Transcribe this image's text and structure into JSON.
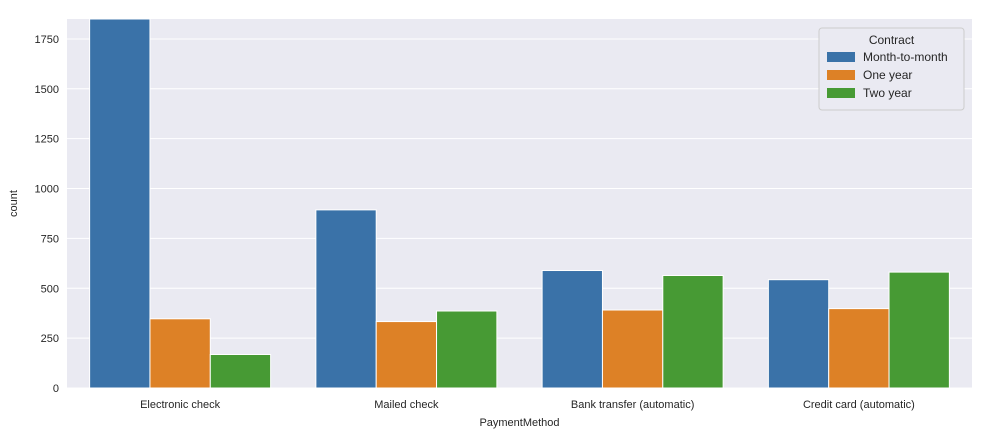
{
  "chart_data": {
    "type": "bar",
    "title": "",
    "xlabel": "PaymentMethod",
    "ylabel": "count",
    "categories": [
      "Electronic check",
      "Mailed check",
      "Bank transfer (automatic)",
      "Credit card (automatic)"
    ],
    "series": [
      {
        "name": "Month-to-month",
        "color": "#3a72a8",
        "values": [
          1850,
          893,
          589,
          543
        ]
      },
      {
        "name": "One year",
        "color": "#dd8126",
        "values": [
          347,
          333,
          391,
          398
        ]
      },
      {
        "name": "Two year",
        "color": "#479a34",
        "values": [
          168,
          386,
          564,
          581
        ]
      }
    ],
    "ylim": [
      0,
      1850
    ],
    "yticks": [
      0,
      250,
      500,
      750,
      1000,
      1250,
      1500,
      1750
    ],
    "grid": true,
    "legend": {
      "title": "Contract",
      "placement": "top-right"
    },
    "background": "#eaeaf2"
  }
}
